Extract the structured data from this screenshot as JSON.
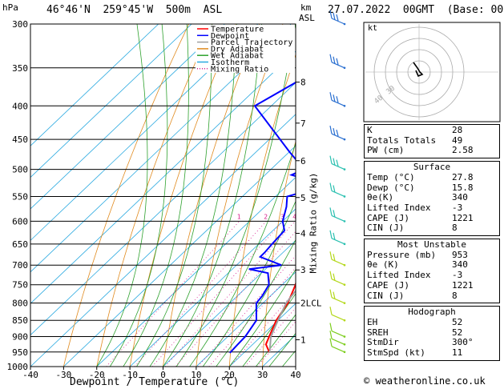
{
  "header": {
    "hpa_label": "hPa",
    "location": "46°46'N  259°45'W  500m  ASL",
    "km_label": "km",
    "asl_label": "ASL",
    "datetime": "27.07.2022  00GMT  (Base: 00)"
  },
  "chart_data": {
    "type": "skew-t",
    "xlabel": "Dewpoint / Temperature (°C)",
    "ylabel": "Mixing Ratio (g/kg)",
    "x_ticks": [
      -40,
      -30,
      -20,
      -10,
      0,
      10,
      20,
      30,
      40
    ],
    "pressure_ticks": [
      300,
      350,
      400,
      450,
      500,
      550,
      600,
      650,
      700,
      750,
      800,
      850,
      900,
      950,
      1000
    ],
    "km_ticks": [
      {
        "label": "1",
        "p": 910
      },
      {
        "label": "2LCL",
        "p": 800
      },
      {
        "label": "3",
        "p": 712
      },
      {
        "label": "4",
        "p": 626
      },
      {
        "label": "5",
        "p": 552
      },
      {
        "label": "6",
        "p": 485
      },
      {
        "label": "7",
        "p": 425
      },
      {
        "label": "8",
        "p": 368
      }
    ],
    "mixing_ratio_labels": [
      "1",
      "2",
      "3",
      "4",
      "5",
      "8",
      "10",
      "15",
      "20",
      "25"
    ],
    "legend": [
      "Temperature",
      "Dewpoint",
      "Parcel Trajectory",
      "Dry Adiabat",
      "Wet Adiabat",
      "Isotherm",
      "Mixing Ratio"
    ],
    "series": [
      {
        "name": "Temperature",
        "color": "#ff0000",
        "p": [
          953,
          925,
          900,
          850,
          800,
          750,
          700,
          650,
          600,
          550,
          500,
          450,
          400,
          350,
          300
        ],
        "t": [
          27.8,
          24.0,
          22.5,
          19.5,
          17.5,
          14.0,
          9.5,
          5.0,
          -0.5,
          -5.0,
          -11.0,
          -17.5,
          -24.0,
          -33.5,
          -43.0
        ]
      },
      {
        "name": "Dewpoint",
        "color": "#0000ff",
        "p": [
          953,
          925,
          900,
          850,
          800,
          780,
          750,
          720,
          710,
          700,
          680,
          670,
          650,
          620,
          600,
          570,
          550,
          535,
          520,
          510,
          500,
          470,
          400,
          350,
          300
        ],
        "t": [
          15.8,
          15.5,
          15.3,
          13.5,
          8.0,
          7.5,
          6.0,
          2.0,
          -5.0,
          3.5,
          -5.5,
          -5.5,
          -6.0,
          -6.5,
          -10.0,
          -13.5,
          -16.5,
          -10.5,
          -14.5,
          -22.0,
          -20.0,
          -30.0,
          -55.0,
          -47.0,
          -68.0
        ]
      },
      {
        "name": "Parcel Trajectory",
        "color": "#a0a0a0",
        "p": [
          953,
          900,
          850,
          800,
          750,
          700,
          650,
          600,
          550,
          500,
          450,
          400,
          350,
          300
        ],
        "t": [
          27.8,
          23.0,
          20.0,
          17.0,
          15.5,
          12.5,
          9.0,
          5.0,
          1.5,
          -3.0,
          -8.5,
          -15.5,
          -23.5,
          -33.0
        ]
      }
    ]
  },
  "hodograph": {
    "label": "kt",
    "ring_labels": [
      "40",
      "30"
    ]
  },
  "indices": {
    "k": {
      "label": "K",
      "value": "28"
    },
    "tt": {
      "label": "Totals Totals",
      "value": "49"
    },
    "pw": {
      "label": "PW (cm)",
      "value": "2.58"
    },
    "surface": {
      "title": "Surface",
      "temp": {
        "label": "Temp (°C)",
        "value": "27.8"
      },
      "dewp": {
        "label": "Dewp (°C)",
        "value": "15.8"
      },
      "theta": {
        "label": "θe(K)",
        "value": "340"
      },
      "li": {
        "label": "Lifted Index",
        "value": "-3"
      },
      "cape": {
        "label": "CAPE (J)",
        "value": "1221"
      },
      "cin": {
        "label": "CIN (J)",
        "value": "8"
      }
    },
    "mu": {
      "title": "Most Unstable",
      "pressure": {
        "label": "Pressure (mb)",
        "value": "953"
      },
      "theta": {
        "label": "θe (K)",
        "value": "340"
      },
      "li": {
        "label": "Lifted Index",
        "value": "-3"
      },
      "cape": {
        "label": "CAPE (J)",
        "value": "1221"
      },
      "cin": {
        "label": "CIN (J)",
        "value": "8"
      }
    },
    "hodo": {
      "title": "Hodograph",
      "eh": {
        "label": "EH",
        "value": "52"
      },
      "sreh": {
        "label": "SREH",
        "value": "52"
      },
      "stmdir": {
        "label": "StmDir",
        "value": "300°"
      },
      "stmspd": {
        "label": "StmSpd (kt)",
        "value": "11"
      }
    }
  },
  "footer": {
    "credit": "© weatheronline.co.uk"
  }
}
